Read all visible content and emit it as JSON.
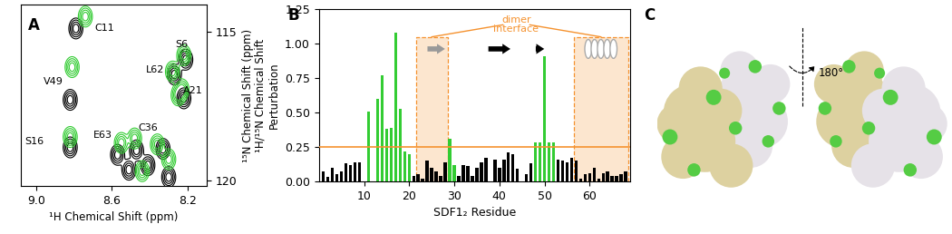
{
  "chart_data": [
    {
      "panel": "A",
      "type": "contour",
      "x_label": "¹H Chemical Shift (ppm)",
      "y_label": "¹⁵N Chemical Shift (ppm)",
      "xlim": [
        9.08,
        8.1
      ],
      "xticks": [
        9.0,
        8.6,
        8.2
      ],
      "ylim": [
        120.2,
        114.1
      ],
      "yticks": [
        115,
        120
      ],
      "series": [
        {
          "color": "#000000",
          "x": [
            8.79,
            8.21,
            8.27,
            8.82,
            8.22,
            8.82,
            8.47,
            8.57,
            8.3,
            8.41,
            8.51,
            8.33
          ],
          "y": [
            114.9,
            115.95,
            116.45,
            117.3,
            117.25,
            118.9,
            119.0,
            119.15,
            119.9,
            119.5,
            119.65,
            118.95
          ]
        },
        {
          "color": "#33cc33",
          "x": [
            8.74,
            8.22,
            8.28,
            8.81,
            8.23,
            8.82,
            8.48,
            8.55,
            8.36,
            8.3,
            8.44,
            8.25
          ],
          "y": [
            114.5,
            115.8,
            116.35,
            116.2,
            116.95,
            118.55,
            118.6,
            118.75,
            118.8,
            119.3,
            119.7,
            117.15
          ]
        }
      ],
      "annotations": [
        {
          "text": "C11",
          "x": 8.64,
          "y": 114.9
        },
        {
          "text": "S6",
          "x": 8.23,
          "y": 115.45
        },
        {
          "text": "L62",
          "x": 8.37,
          "y": 116.3
        },
        {
          "text": "V49",
          "x": 8.91,
          "y": 116.7
        },
        {
          "text": "A21",
          "x": 8.17,
          "y": 117.0
        },
        {
          "text": "S16",
          "x": 9.01,
          "y": 118.7
        },
        {
          "text": "E63",
          "x": 8.65,
          "y": 118.5
        },
        {
          "text": "C36",
          "x": 8.41,
          "y": 118.25
        }
      ]
    },
    {
      "panel": "B",
      "type": "bar",
      "x_label": "SDF1₂ Residue",
      "y_label": "¹H/¹⁵N Chemical Shift\nPerturbation",
      "x": [
        1,
        2,
        3,
        4,
        5,
        6,
        7,
        8,
        9,
        10,
        11,
        12,
        13,
        14,
        15,
        16,
        17,
        18,
        19,
        20,
        21,
        22,
        23,
        24,
        25,
        26,
        27,
        28,
        29,
        30,
        31,
        32,
        33,
        34,
        35,
        36,
        37,
        38,
        39,
        40,
        41,
        42,
        43,
        44,
        45,
        46,
        47,
        48,
        49,
        50,
        51,
        52,
        53,
        54,
        55,
        56,
        57,
        58,
        59,
        60,
        61,
        62,
        63,
        64,
        65,
        66,
        67,
        68
      ],
      "values": [
        0.07,
        0.03,
        0.1,
        0.05,
        0.07,
        0.13,
        0.12,
        0.14,
        0.14,
        null,
        0.51,
        null,
        0.6,
        0.77,
        0.38,
        0.39,
        1.08,
        0.53,
        0.22,
        0.2,
        0.04,
        0.05,
        0.02,
        0.15,
        0.1,
        0.07,
        0.04,
        0.14,
        0.31,
        0.12,
        0.04,
        0.12,
        0.11,
        0.04,
        0.1,
        0.14,
        0.17,
        null,
        0.16,
        0.1,
        0.16,
        0.21,
        0.2,
        0.09,
        null,
        0.05,
        0.13,
        0.28,
        0.28,
        0.91,
        0.28,
        0.28,
        0.16,
        0.15,
        0.14,
        0.17,
        0.15,
        0.02,
        0.05,
        0.06,
        0.1,
        0.02,
        0.06,
        0.07,
        0.04,
        0.04,
        0.05,
        0.07
      ],
      "colors": [
        "#000000",
        "#000000",
        "#000000",
        "#000000",
        "#000000",
        "#000000",
        "#000000",
        "#000000",
        "#000000",
        "#000000",
        "#33cc33",
        "#000000",
        "#33cc33",
        "#33cc33",
        "#33cc33",
        "#33cc33",
        "#33cc33",
        "#33cc33",
        "#33cc33",
        "#33cc33",
        "#000000",
        "#000000",
        "#000000",
        "#000000",
        "#000000",
        "#000000",
        "#000000",
        "#000000",
        "#33cc33",
        "#33cc33",
        "#000000",
        "#000000",
        "#000000",
        "#000000",
        "#000000",
        "#000000",
        "#000000",
        "#000000",
        "#000000",
        "#000000",
        "#000000",
        "#000000",
        "#000000",
        "#000000",
        "#000000",
        "#000000",
        "#000000",
        "#33cc33",
        "#33cc33",
        "#33cc33",
        "#33cc33",
        "#33cc33",
        "#000000",
        "#000000",
        "#000000",
        "#000000",
        "#000000",
        "#000000",
        "#000000",
        "#000000",
        "#000000",
        "#000000",
        "#000000",
        "#000000",
        "#000000",
        "#000000",
        "#000000",
        "#000000"
      ],
      "xlim": [
        0,
        69
      ],
      "xticks": [
        10,
        20,
        30,
        40,
        50,
        60
      ],
      "ylim": [
        0,
        1.25
      ],
      "yticks": [
        {
          "value": 0,
          "label": "0.00"
        },
        {
          "value": 0.25,
          "label": "0.25"
        },
        {
          "value": 0.5,
          "label": "0.50"
        },
        {
          "value": 0.75,
          "label": "0.75"
        },
        {
          "value": 1.0,
          "label": "1.00"
        },
        {
          "value": 1.25,
          "label": "1.25"
        }
      ],
      "threshold": {
        "value": 0.25,
        "color": "#f5922f"
      },
      "highlight": {
        "text": "dimer\ninterface",
        "ranges": [
          [
            21.5,
            28.5
          ],
          [
            56.5,
            68.5
          ]
        ],
        "color": "#fce6cf",
        "edge_color": "#f5922f"
      },
      "secondary_structure": [
        {
          "type": "strand",
          "start": 23.5,
          "end": 28.5,
          "color": "#999999"
        },
        {
          "type": "strand",
          "start": 37,
          "end": 43,
          "color": "#000000"
        },
        {
          "type": "strand",
          "start": 47.5,
          "end": 50.5,
          "color": "#000000"
        },
        {
          "type": "helix",
          "start": 59,
          "end": 66,
          "color": "#aaaaaa"
        }
      ]
    },
    {
      "panel": "C",
      "type": "image",
      "annotations": [
        {
          "text": "180°"
        }
      ]
    }
  ]
}
